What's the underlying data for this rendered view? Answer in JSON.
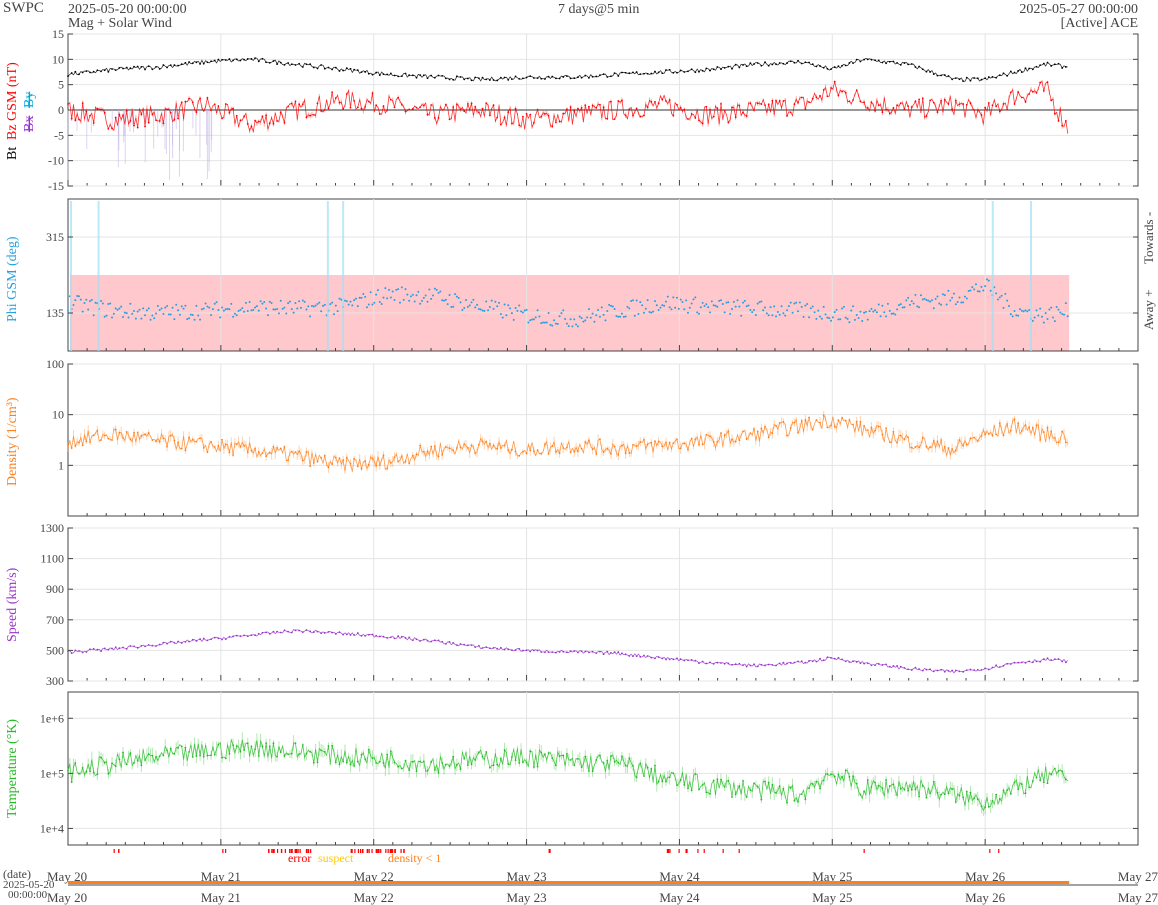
{
  "header": {
    "brand": "SWPC",
    "start": "2025-05-20 00:00:00",
    "subtitle": "Mag + Solar Wind",
    "resolution": "7 days@5 min",
    "end": "2025-05-27 00:00:00",
    "source": "[Active] ACE"
  },
  "colors": {
    "bt": "#000000",
    "bz": "#ff0000",
    "bx": "#9933cc",
    "by": "#00aadd",
    "phi": "#2a9fe0",
    "phi_band": "#ffc8cc",
    "density": "#ff7f1a",
    "speed": "#9933cc",
    "temperature": "#22bb22",
    "error": "#ff0000",
    "suspect": "#ffcc00",
    "density_lt_1": "#ff7f1a"
  },
  "x_axis": {
    "ticks": [
      "May 20",
      "May 21",
      "May 22",
      "May 23",
      "May 24",
      "May 25",
      "May 26",
      "May 27"
    ],
    "range_days": [
      0,
      7
    ],
    "data_end_day": 6.55
  },
  "footer": {
    "date_label": "(date)",
    "date_value": "2025-05-20",
    "time_value": "00:00:00",
    "legend_error": "error",
    "legend_suspect": "suspect",
    "legend_density": "density < 1"
  },
  "chart_data": [
    {
      "type": "line",
      "id": "mag",
      "ylabel_bt": "Bt",
      "ylabel_bz": "Bz GSM (nT)",
      "ylabel_bx": "Bx",
      "ylabel_by": "By",
      "ylim": [
        -15,
        15
      ],
      "yticks": [
        "15",
        "10",
        "5",
        "0",
        "-5",
        "-10",
        "-15"
      ],
      "series": [
        {
          "name": "Bt",
          "x": [
            0,
            0.3,
            0.6,
            0.9,
            1.2,
            1.5,
            1.8,
            2.1,
            2.4,
            2.7,
            3.0,
            3.3,
            3.6,
            3.9,
            4.2,
            4.5,
            4.8,
            5.0,
            5.2,
            5.5,
            5.8,
            6.0,
            6.2,
            6.4,
            6.55
          ],
          "values": [
            7,
            8,
            8.5,
            9.5,
            10,
            9,
            8,
            7,
            6.5,
            6,
            6.5,
            6.5,
            7,
            7.5,
            8,
            9,
            9.5,
            8,
            10,
            9,
            6,
            6,
            7.5,
            9,
            8.5
          ]
        },
        {
          "name": "Bz",
          "x": [
            0,
            0.3,
            0.6,
            0.9,
            1.2,
            1.5,
            1.8,
            2.1,
            2.4,
            2.7,
            3.0,
            3.3,
            3.6,
            3.9,
            4.2,
            4.5,
            4.8,
            5.0,
            5.2,
            5.5,
            5.8,
            6.0,
            6.2,
            6.4,
            6.55
          ],
          "values": [
            0,
            -2,
            -1,
            1,
            -3,
            0,
            2,
            1,
            -1,
            0,
            -2,
            -1,
            0,
            1,
            -1,
            0,
            1,
            4,
            2,
            0,
            1,
            -1,
            3,
            4,
            -4
          ]
        }
      ]
    },
    {
      "type": "scatter",
      "id": "phi",
      "ylabel": "Phi GSM (deg)",
      "ylim": [
        45,
        405
      ],
      "yticks": [
        "315",
        "135"
      ],
      "ytick_values": [
        315,
        135
      ],
      "band": [
        45,
        225
      ],
      "right_labels": [
        "Towards -",
        "Away +"
      ],
      "x": [
        0,
        0.3,
        0.6,
        0.9,
        1.2,
        1.5,
        1.8,
        2.1,
        2.4,
        2.7,
        3.0,
        3.3,
        3.6,
        3.9,
        4.2,
        4.5,
        4.8,
        5.0,
        5.2,
        5.5,
        5.8,
        6.0,
        6.2,
        6.4,
        6.55
      ],
      "values": [
        160,
        140,
        135,
        140,
        150,
        145,
        150,
        180,
        175,
        150,
        130,
        120,
        140,
        160,
        150,
        145,
        140,
        135,
        130,
        160,
        170,
        200,
        140,
        130,
        140
      ]
    },
    {
      "type": "line",
      "id": "density",
      "ylabel": "Density (1/cm³)",
      "yscale": "log",
      "ylim": [
        0.1,
        100
      ],
      "yticks": [
        "100",
        "10",
        "1"
      ],
      "ytick_values": [
        100,
        10,
        1
      ],
      "x": [
        0,
        0.3,
        0.6,
        0.9,
        1.2,
        1.5,
        1.8,
        2.1,
        2.4,
        2.7,
        3.0,
        3.3,
        3.6,
        3.9,
        4.2,
        4.5,
        4.8,
        5.0,
        5.2,
        5.5,
        5.8,
        6.0,
        6.2,
        6.4,
        6.55
      ],
      "values": [
        3,
        4,
        3,
        2.5,
        2,
        1.5,
        1,
        1.2,
        2,
        2.5,
        2,
        2.5,
        2.2,
        2.5,
        3,
        4,
        6,
        8,
        5,
        3,
        2,
        4,
        6,
        4,
        3.5
      ]
    },
    {
      "type": "line",
      "id": "speed",
      "ylabel": "Speed (km/s)",
      "ylim": [
        300,
        1300
      ],
      "yticks": [
        "1300",
        "1100",
        "900",
        "700",
        "500",
        "300"
      ],
      "ytick_values": [
        1300,
        1100,
        900,
        700,
        500,
        300
      ],
      "x": [
        0,
        0.3,
        0.6,
        0.9,
        1.2,
        1.5,
        1.8,
        2.1,
        2.4,
        2.7,
        3.0,
        3.3,
        3.6,
        3.9,
        4.2,
        4.5,
        4.8,
        5.0,
        5.2,
        5.5,
        5.8,
        6.0,
        6.2,
        6.4,
        6.55
      ],
      "values": [
        490,
        510,
        540,
        570,
        600,
        630,
        610,
        590,
        560,
        520,
        500,
        490,
        480,
        450,
        420,
        400,
        420,
        450,
        420,
        380,
        360,
        380,
        420,
        440,
        430
      ]
    },
    {
      "type": "line",
      "id": "temperature",
      "ylabel": "Temperature (°K)",
      "yscale": "log",
      "ylim": [
        5000,
        3000000
      ],
      "yticks": [
        "1e+6",
        "1e+5",
        "1e+4"
      ],
      "ytick_values": [
        1000000,
        100000,
        10000
      ],
      "x": [
        0,
        0.3,
        0.6,
        0.9,
        1.2,
        1.5,
        1.8,
        2.1,
        2.4,
        2.7,
        3.0,
        3.3,
        3.6,
        3.9,
        4.2,
        4.5,
        4.8,
        5.0,
        5.2,
        5.5,
        5.8,
        6.0,
        6.2,
        6.4,
        6.55
      ],
      "values": [
        100000,
        150000,
        200000,
        250000,
        300000,
        250000,
        200000,
        180000,
        150000,
        180000,
        200000,
        160000,
        150000,
        80000,
        60000,
        50000,
        40000,
        100000,
        50000,
        60000,
        40000,
        30000,
        50000,
        90000,
        80000
      ]
    }
  ]
}
